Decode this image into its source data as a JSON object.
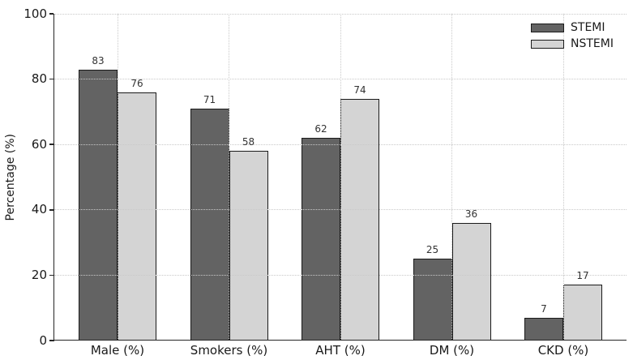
{
  "chart_data": {
    "type": "bar",
    "title": "",
    "xlabel": "",
    "ylabel": "Percentage (%)",
    "categories": [
      "Male (%)",
      "Smokers (%)",
      "AHT (%)",
      "DM (%)",
      "CKD (%)"
    ],
    "series": [
      {
        "name": "STEMI",
        "color": "#636363",
        "values": [
          83,
          71,
          62,
          25,
          7
        ]
      },
      {
        "name": "NSTEMI",
        "color": "#d4d4d4",
        "values": [
          76,
          58,
          74,
          36,
          17
        ]
      }
    ],
    "ylim": [
      0,
      100
    ],
    "yticks": [
      0,
      20,
      40,
      60,
      80,
      100
    ],
    "grid": "dotted both axes, drawn above bars",
    "legend_position": "top-right",
    "bar_edge_color": "#1a1a1a",
    "value_labels_shown": true,
    "background_color": "#ffffff"
  }
}
